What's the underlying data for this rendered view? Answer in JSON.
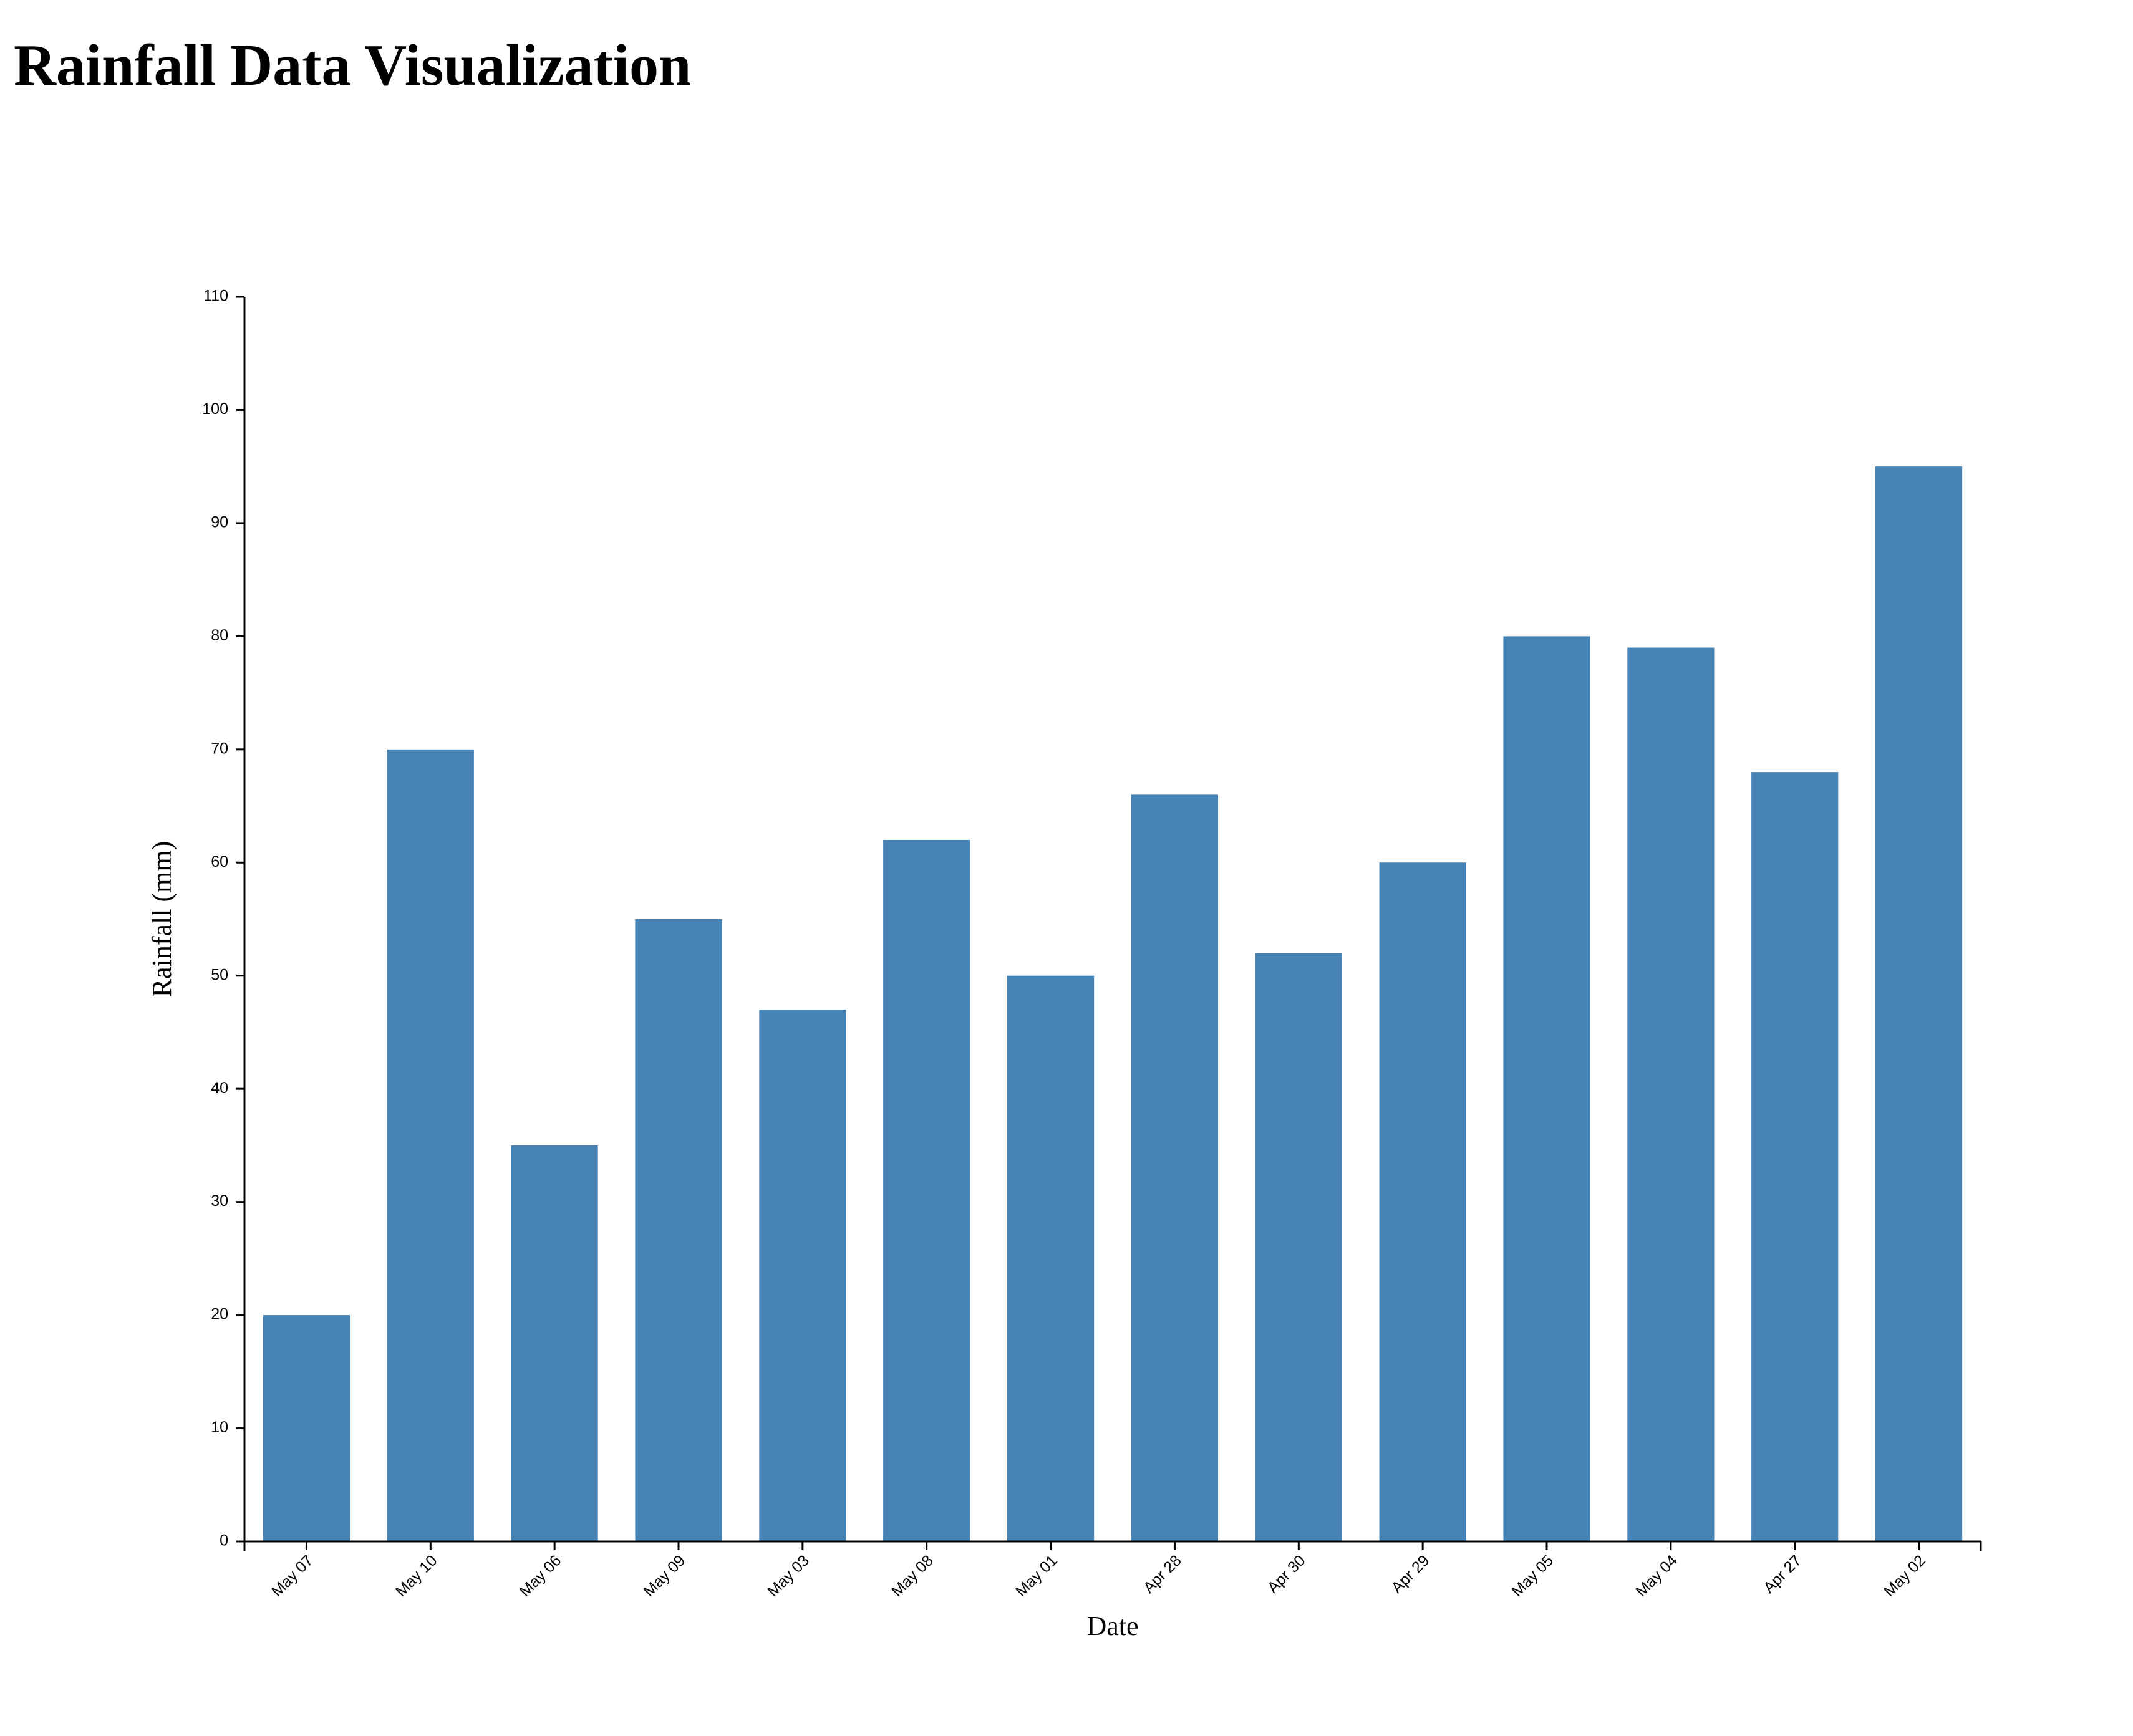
{
  "page": {
    "title": "Rainfall Data Visualization"
  },
  "chart_data": {
    "type": "bar",
    "categories": [
      "May 07",
      "May 10",
      "May 06",
      "May 09",
      "May 03",
      "May 08",
      "May 01",
      "Apr 28",
      "Apr 30",
      "Apr 29",
      "May 05",
      "May 04",
      "Apr 27",
      "May 02"
    ],
    "values": [
      20,
      70,
      35,
      55,
      47,
      62,
      50,
      66,
      52,
      60,
      80,
      79,
      68,
      95
    ],
    "xlabel": "Date",
    "ylabel": "Rainfall (mm)",
    "ylim": [
      0,
      110
    ],
    "yticks": [
      0,
      10,
      20,
      30,
      40,
      50,
      60,
      70,
      80,
      90,
      100,
      110
    ],
    "bar_color": "#4682b4",
    "axis_color": "#000000",
    "grid": false,
    "legend": "none"
  }
}
